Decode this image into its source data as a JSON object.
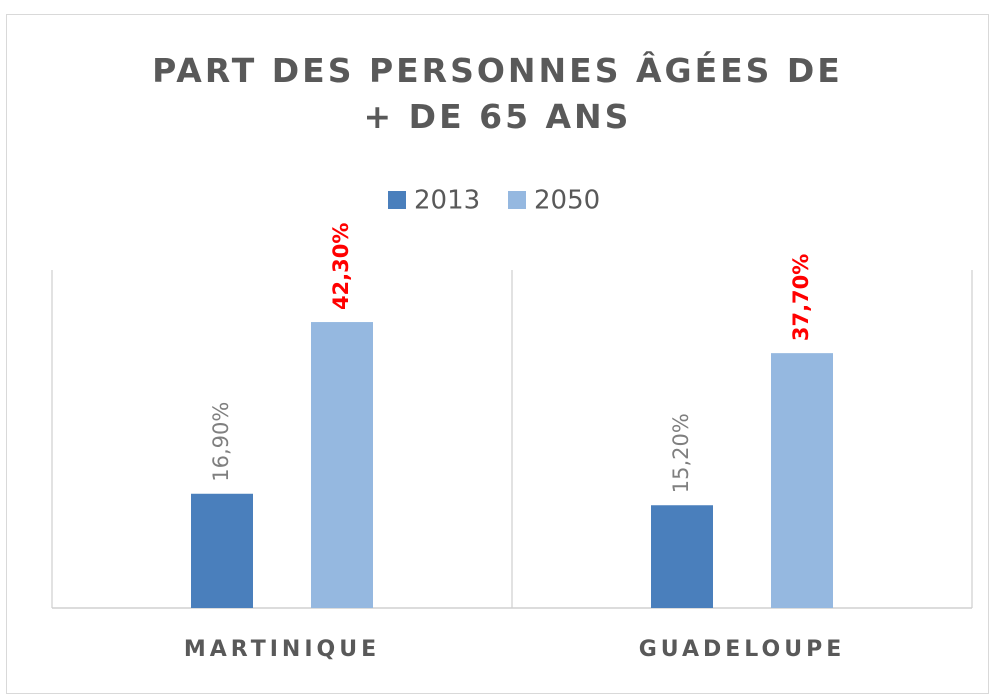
{
  "chart_data": {
    "type": "bar",
    "title": "PART DES PERSONNES ÂGÉES DE + DE 65 ANS",
    "categories": [
      "MARTINIQUE",
      "GUADELOUPE"
    ],
    "series": [
      {
        "name": "2013",
        "color": "#4a7fbc",
        "label_color": "#7f7f7f",
        "values": [
          16.9,
          15.2
        ],
        "value_labels": [
          "16,90%",
          "15,20%"
        ]
      },
      {
        "name": "2050",
        "color": "#95b8e0",
        "label_color": "#ff0000",
        "values": [
          42.3,
          37.7
        ],
        "value_labels": [
          "42,30%",
          "37,70%"
        ]
      }
    ],
    "ylim": [
      0,
      50
    ],
    "legend": "top"
  }
}
